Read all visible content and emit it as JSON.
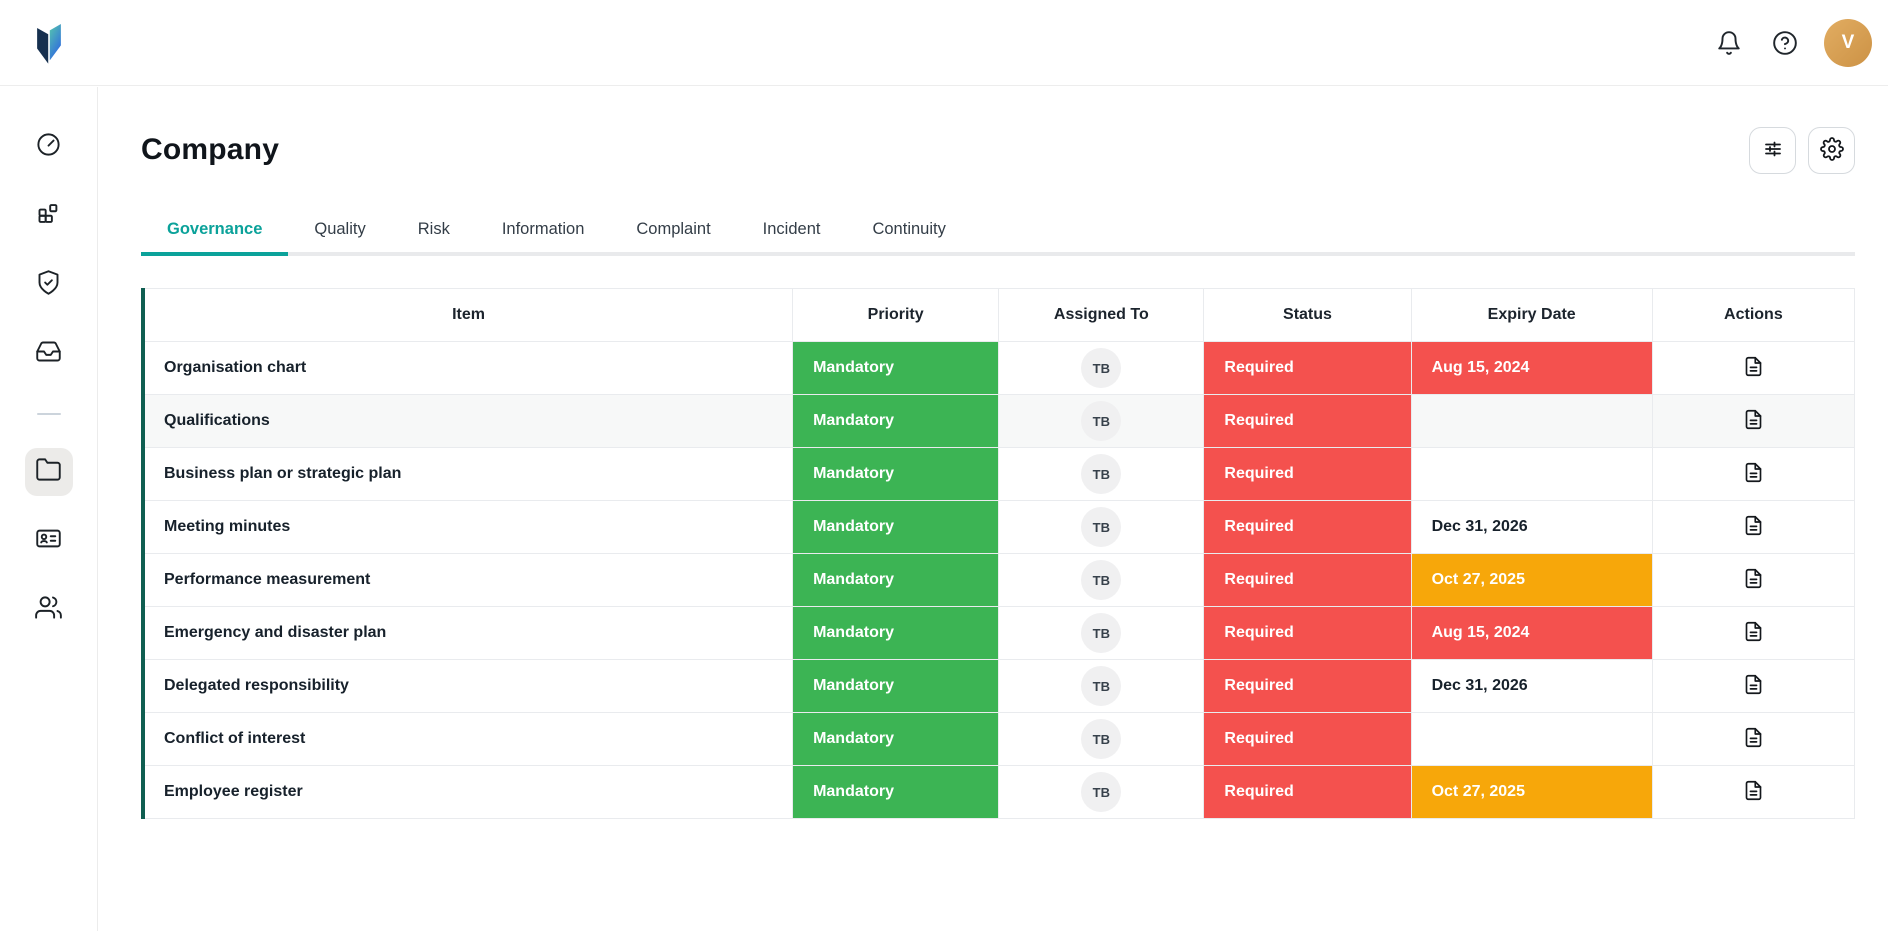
{
  "topbar": {
    "icons": [
      "bell-icon",
      "help-icon"
    ],
    "avatar_initial": "V"
  },
  "sidebar": {
    "items": [
      {
        "name": "dashboard",
        "icon": "gauge-icon"
      },
      {
        "name": "modules",
        "icon": "grid-icon"
      },
      {
        "name": "safeguarding",
        "icon": "shield-check-icon"
      },
      {
        "name": "inbox",
        "icon": "inbox-icon"
      },
      {
        "type": "divider"
      },
      {
        "name": "documents",
        "icon": "folder-icon",
        "active": true
      },
      {
        "name": "id-card",
        "icon": "id-card-icon"
      },
      {
        "name": "people",
        "icon": "users-icon"
      }
    ]
  },
  "page": {
    "title": "Company"
  },
  "toolbar": {
    "buttons": [
      {
        "name": "filter",
        "icon": "sliders-icon"
      },
      {
        "name": "settings",
        "icon": "gear-icon"
      }
    ]
  },
  "tabs": {
    "active": "Governance",
    "items": [
      "Governance",
      "Quality",
      "Risk",
      "Information",
      "Complaint",
      "Incident",
      "Continuity"
    ]
  },
  "table": {
    "columns": [
      "Item",
      "Priority",
      "Assigned To",
      "Status",
      "Expiry Date",
      "Actions"
    ],
    "actions_icon": "file-text-icon",
    "rows": [
      {
        "item": "Organisation chart",
        "priority": "Mandatory",
        "assigned": "TB",
        "status": "Required",
        "expiry": "Aug 15, 2024",
        "expiry_level": "overdue",
        "highlight": false
      },
      {
        "item": "Qualifications",
        "priority": "Mandatory",
        "assigned": "TB",
        "status": "Required",
        "expiry": "",
        "expiry_level": "none",
        "highlight": true
      },
      {
        "item": "Business plan or strategic plan",
        "priority": "Mandatory",
        "assigned": "TB",
        "status": "Required",
        "expiry": "",
        "expiry_level": "none",
        "highlight": false
      },
      {
        "item": "Meeting minutes",
        "priority": "Mandatory",
        "assigned": "TB",
        "status": "Required",
        "expiry": "Dec 31, 2026",
        "expiry_level": "plain",
        "highlight": false
      },
      {
        "item": "Performance measurement",
        "priority": "Mandatory",
        "assigned": "TB",
        "status": "Required",
        "expiry": "Oct 27, 2025",
        "expiry_level": "warning",
        "highlight": false
      },
      {
        "item": "Emergency and disaster plan",
        "priority": "Mandatory",
        "assigned": "TB",
        "status": "Required",
        "expiry": "Aug 15, 2024",
        "expiry_level": "overdue",
        "highlight": false
      },
      {
        "item": "Delegated responsibility",
        "priority": "Mandatory",
        "assigned": "TB",
        "status": "Required",
        "expiry": "Dec 31, 2026",
        "expiry_level": "plain",
        "highlight": false
      },
      {
        "item": "Conflict of interest",
        "priority": "Mandatory",
        "assigned": "TB",
        "status": "Required",
        "expiry": "",
        "expiry_level": "none",
        "highlight": false
      },
      {
        "item": "Employee register",
        "priority": "Mandatory",
        "assigned": "TB",
        "status": "Required",
        "expiry": "Oct 27, 2025",
        "expiry_level": "warning",
        "highlight": false
      }
    ]
  },
  "colors": {
    "green": "#3cb454",
    "red": "#f4514e",
    "orange": "#f7a70a",
    "teal": "#0ba29a",
    "accent": "#0f5e51",
    "gold-light": "#e2ad62",
    "gold-dark": "#cc9245"
  }
}
